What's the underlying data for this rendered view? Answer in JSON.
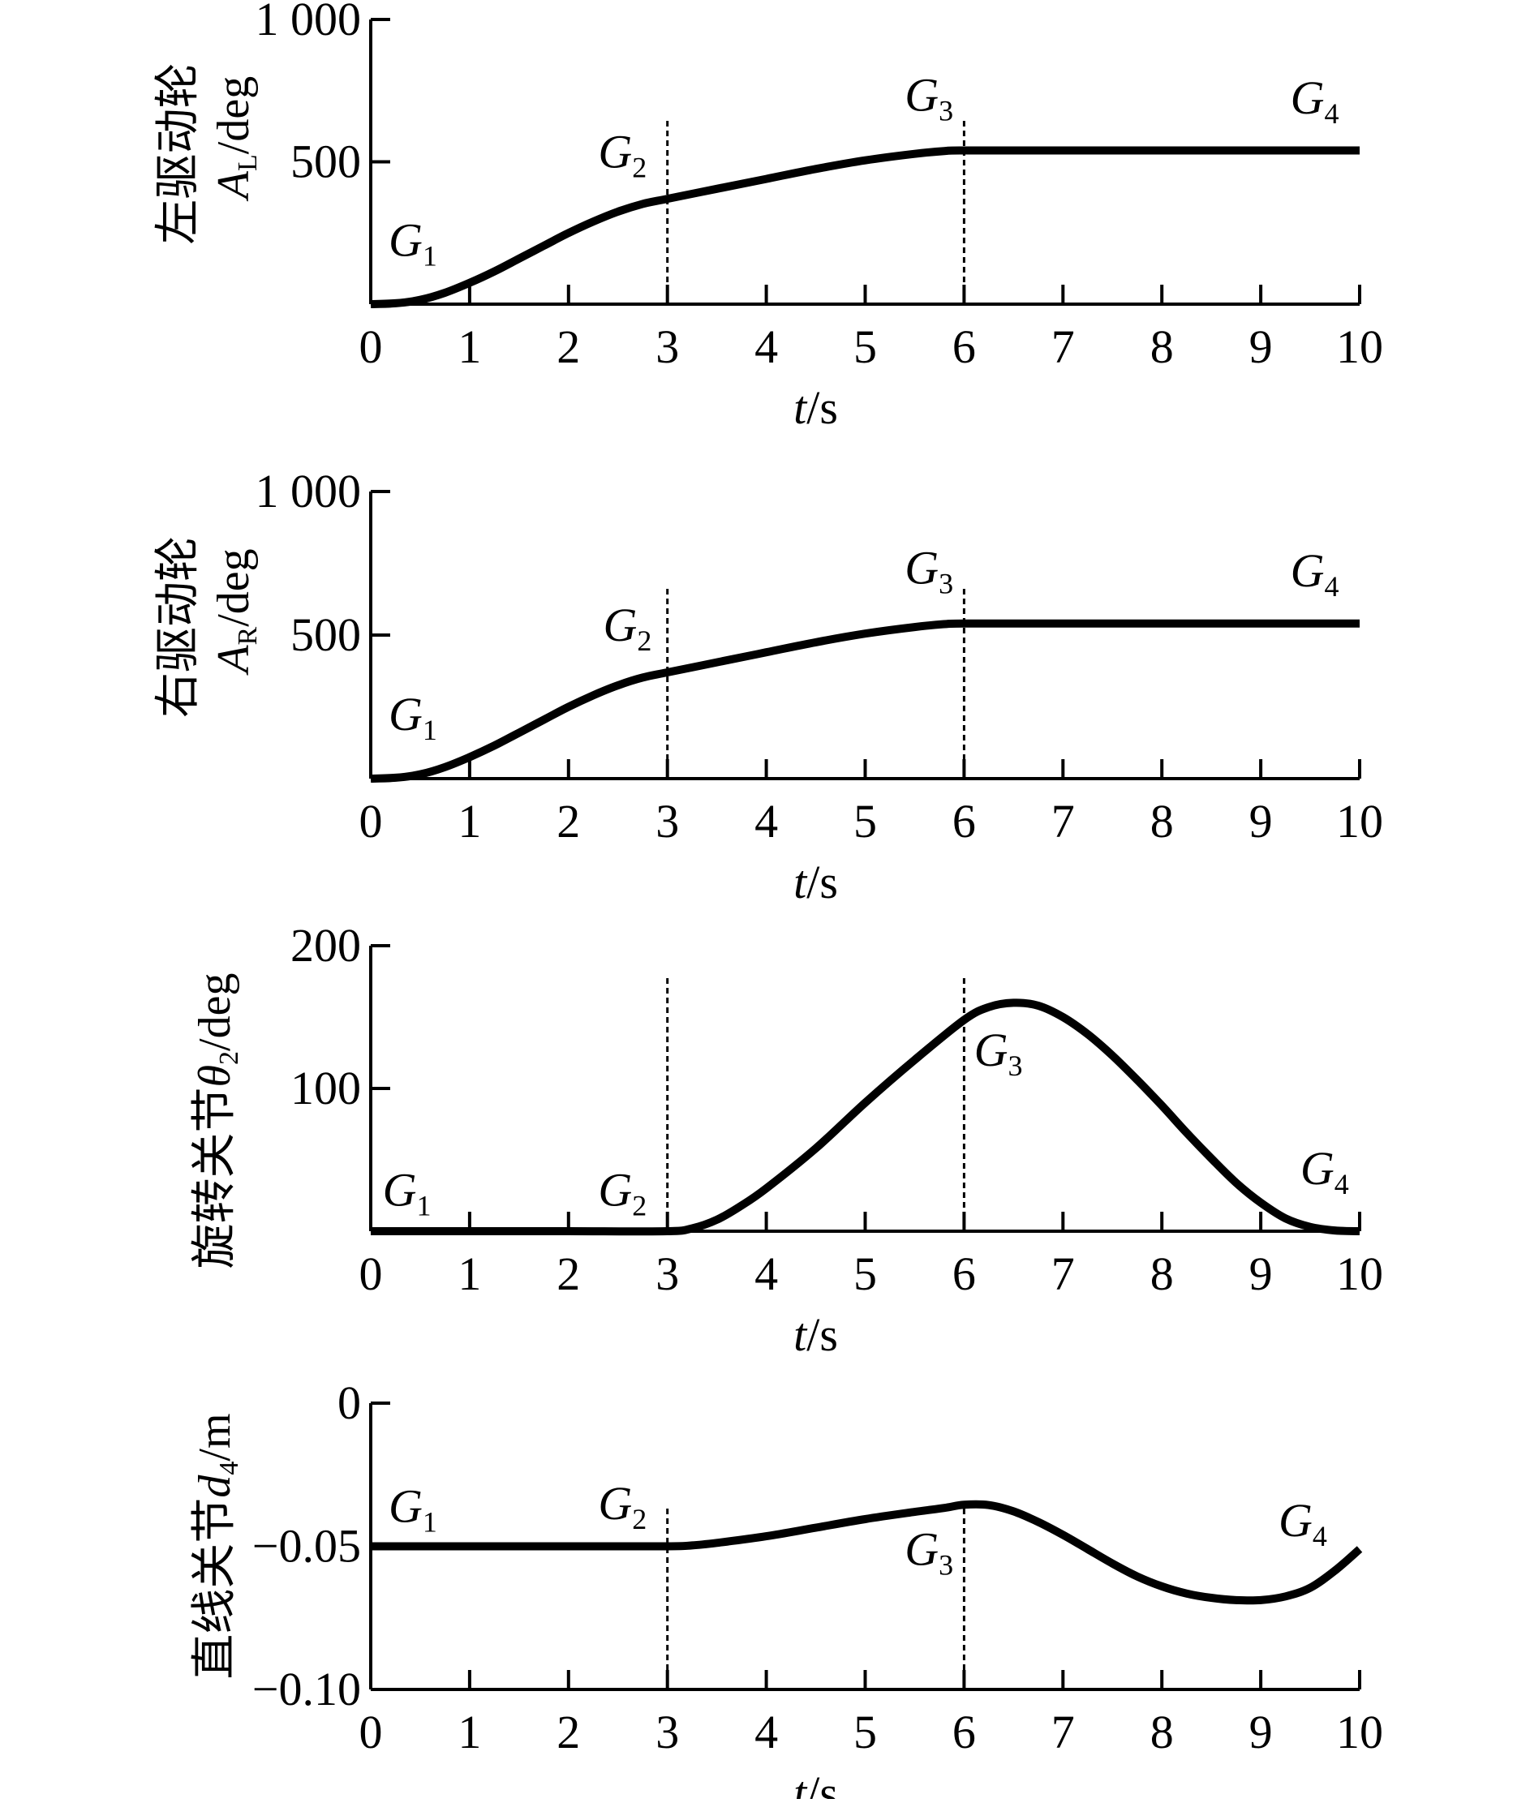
{
  "chart_data": [
    {
      "type": "line",
      "title": "",
      "xlabel": "t/s",
      "ylabel": "左驱动轮 A_L/deg",
      "ylabel_text": "左驱动轮",
      "ylabel_sym": "A",
      "ylabel_sub": "L",
      "ylabel_unit": "/deg",
      "xlim": [
        0,
        10
      ],
      "ylim": [
        0,
        1000
      ],
      "x_ticks": [
        0,
        1,
        2,
        3,
        4,
        5,
        6,
        7,
        8,
        9,
        10
      ],
      "x_tick_labels": [
        "0",
        "1",
        "2",
        "3",
        "4",
        "5",
        "6",
        "7",
        "8",
        "9",
        "10"
      ],
      "y_ticks": [
        500,
        1000
      ],
      "y_tick_labels": [
        "500",
        "1 000"
      ],
      "vlines": [
        3,
        6
      ],
      "grid": false,
      "series": [
        {
          "x": [
            0,
            0.25,
            0.5,
            0.75,
            1,
            1.25,
            1.5,
            1.75,
            2,
            2.25,
            2.5,
            2.75,
            3,
            3.5,
            4,
            4.5,
            5,
            5.5,
            5.8,
            6,
            7,
            8,
            9,
            10
          ],
          "y": [
            0,
            3,
            15,
            40,
            75,
            115,
            160,
            205,
            250,
            290,
            325,
            352,
            370,
            405,
            440,
            475,
            505,
            528,
            538,
            540,
            540,
            540,
            540,
            540
          ]
        }
      ],
      "annotations": [
        {
          "base": "G",
          "sub": "1",
          "x": 0.18,
          "y": 170
        },
        {
          "base": "G",
          "sub": "2",
          "x": 2.3,
          "y": 480
        },
        {
          "base": "G",
          "sub": "3",
          "x": 5.4,
          "y": 680
        },
        {
          "base": "G",
          "sub": "4",
          "x": 9.3,
          "y": 670
        }
      ]
    },
    {
      "type": "line",
      "title": "",
      "xlabel": "t/s",
      "ylabel": "右驱动轮 A_R/deg",
      "ylabel_text": "右驱动轮",
      "ylabel_sym": "A",
      "ylabel_sub": "R",
      "ylabel_unit": "/deg",
      "xlim": [
        0,
        10
      ],
      "ylim": [
        0,
        1000
      ],
      "x_ticks": [
        0,
        1,
        2,
        3,
        4,
        5,
        6,
        7,
        8,
        9,
        10
      ],
      "x_tick_labels": [
        "0",
        "1",
        "2",
        "3",
        "4",
        "5",
        "6",
        "7",
        "8",
        "9",
        "10"
      ],
      "y_ticks": [
        500,
        1000
      ],
      "y_tick_labels": [
        "500",
        "1 000"
      ],
      "vlines": [
        3,
        6
      ],
      "grid": false,
      "series": [
        {
          "x": [
            0,
            0.25,
            0.5,
            0.75,
            1,
            1.25,
            1.5,
            1.75,
            2,
            2.25,
            2.5,
            2.75,
            3,
            3.5,
            4,
            4.5,
            5,
            5.5,
            5.8,
            6,
            7,
            8,
            9,
            10
          ],
          "y": [
            0,
            3,
            15,
            40,
            75,
            115,
            160,
            205,
            250,
            290,
            325,
            352,
            370,
            405,
            440,
            475,
            505,
            528,
            538,
            540,
            540,
            540,
            540,
            540
          ]
        }
      ],
      "annotations": [
        {
          "base": "G",
          "sub": "1",
          "x": 0.18,
          "y": 170
        },
        {
          "base": "G",
          "sub": "2",
          "x": 2.35,
          "y": 480
        },
        {
          "base": "G",
          "sub": "3",
          "x": 5.4,
          "y": 680
        },
        {
          "base": "G",
          "sub": "4",
          "x": 9.3,
          "y": 670
        }
      ]
    },
    {
      "type": "line",
      "title": "",
      "xlabel": "t/s",
      "ylabel": "旋转关节 θ2/deg",
      "ylabel_text": "旋转关节",
      "ylabel_sym": "θ",
      "ylabel_sub": "2",
      "ylabel_unit": "/deg",
      "xlim": [
        0,
        10
      ],
      "ylim": [
        0,
        200
      ],
      "x_ticks": [
        0,
        1,
        2,
        3,
        4,
        5,
        6,
        7,
        8,
        9,
        10
      ],
      "x_tick_labels": [
        "0",
        "1",
        "2",
        "3",
        "4",
        "5",
        "6",
        "7",
        "8",
        "9",
        "10"
      ],
      "y_ticks": [
        100,
        200
      ],
      "y_tick_labels": [
        "100",
        "200"
      ],
      "vlines": [
        3,
        6
      ],
      "grid": false,
      "series": [
        {
          "x": [
            0,
            1,
            2,
            3,
            3.25,
            3.5,
            3.75,
            4,
            4.5,
            5,
            5.5,
            6,
            6.25,
            6.5,
            6.75,
            7,
            7.25,
            7.5,
            7.75,
            8,
            8.25,
            8.5,
            8.75,
            9,
            9.25,
            9.5,
            9.75,
            10
          ],
          "y": [
            0,
            0,
            0,
            0,
            2,
            8,
            18,
            30,
            58,
            90,
            120,
            148,
            157,
            160,
            158,
            150,
            138,
            123,
            106,
            88,
            69,
            51,
            34,
            20,
            9,
            3,
            0.5,
            0
          ]
        }
      ],
      "annotations": [
        {
          "base": "G",
          "sub": "1",
          "x": 0.12,
          "y": 18
        },
        {
          "base": "G",
          "sub": "2",
          "x": 2.3,
          "y": 18
        },
        {
          "base": "G",
          "sub": "3",
          "x": 6.1,
          "y": 116
        },
        {
          "base": "G",
          "sub": "4",
          "x": 9.4,
          "y": 33
        }
      ]
    },
    {
      "type": "line",
      "title": "",
      "xlabel": "t/s",
      "ylabel": "直线关节 d4/m",
      "ylabel_text": "直线关节",
      "ylabel_sym": "d",
      "ylabel_sub": "4",
      "ylabel_unit": "/m",
      "xlim": [
        0,
        10
      ],
      "ylim": [
        -0.1,
        0
      ],
      "x_ticks": [
        0,
        1,
        2,
        3,
        4,
        5,
        6,
        7,
        8,
        9,
        10
      ],
      "x_tick_labels": [
        "0",
        "1",
        "2",
        "3",
        "4",
        "5",
        "6",
        "7",
        "8",
        "9",
        "10"
      ],
      "y_ticks": [
        0,
        -0.05,
        -0.1
      ],
      "y_tick_labels": [
        "0",
        "−0.05",
        "−0.10"
      ],
      "vlines": [
        3,
        6
      ],
      "grid": false,
      "series": [
        {
          "x": [
            0,
            1,
            2,
            3,
            3.25,
            3.5,
            4,
            4.5,
            5,
            5.5,
            5.8,
            6,
            6.25,
            6.5,
            6.75,
            7,
            7.25,
            7.5,
            7.75,
            8,
            8.25,
            8.5,
            8.75,
            9,
            9.25,
            9.5,
            9.75,
            10
          ],
          "y": [
            -0.05,
            -0.05,
            -0.05,
            -0.05,
            -0.0497,
            -0.0488,
            -0.0465,
            -0.0435,
            -0.0405,
            -0.038,
            -0.0366,
            -0.0355,
            -0.0356,
            -0.0378,
            -0.0415,
            -0.046,
            -0.051,
            -0.056,
            -0.0605,
            -0.064,
            -0.0665,
            -0.068,
            -0.0688,
            -0.0688,
            -0.0675,
            -0.0645,
            -0.0585,
            -0.051
          ]
        }
      ],
      "annotations": [
        {
          "base": "G",
          "sub": "1",
          "x": 0.18,
          "y": -0.0415
        },
        {
          "base": "G",
          "sub": "2",
          "x": 2.3,
          "y": -0.0405
        },
        {
          "base": "G",
          "sub": "3",
          "x": 5.4,
          "y": -0.0565
        },
        {
          "base": "G",
          "sub": "4",
          "x": 9.18,
          "y": -0.0465
        }
      ]
    }
  ]
}
